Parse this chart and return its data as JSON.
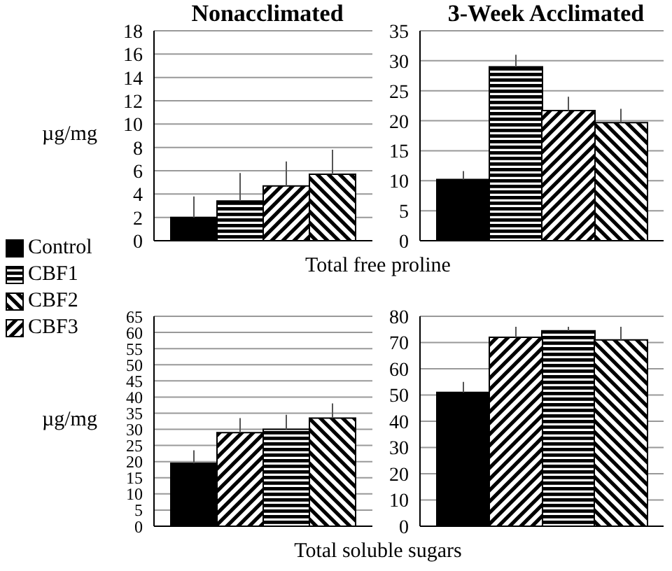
{
  "chart_data": [
    {
      "type": "bar",
      "title": "Nonacclimated",
      "xlabel": "Total free proline",
      "ylabel": "µg/mg",
      "categories": [
        null,
        null,
        null,
        null
      ],
      "stacked": true,
      "ylim": [
        0,
        18
      ],
      "yticks": [
        0,
        2,
        4,
        6,
        8,
        10,
        12,
        14,
        16,
        18
      ],
      "grid": "y",
      "legend": "left",
      "series": [
        {
          "name": "Control",
          "color": "#000000",
          "values": [
            2.0,
            null,
            null,
            null
          ],
          "errors": [
            [
              2.0,
              3.8
            ],
            null,
            null,
            null
          ]
        },
        {
          "name": "CBF1",
          "color": "#000000",
          "values": [
            null,
            3.4,
            null,
            null
          ],
          "errors": [
            null,
            [
              3.4,
              5.8
            ],
            null,
            null
          ]
        },
        {
          "name": "CBF2",
          "color": "#000000",
          "values": [
            null,
            null,
            null,
            5.7
          ],
          "errors": [
            null,
            null,
            null,
            [
              5.7,
              7.8
            ]
          ]
        },
        {
          "name": "CBF3",
          "color": "#000000",
          "values": [
            null,
            null,
            4.7,
            null
          ],
          "errors": [
            null,
            null,
            [
              4.7,
              6.8
            ],
            null
          ]
        }
      ]
    },
    {
      "type": "bar",
      "title": "3-Week Acclimated",
      "categories": [
        null,
        null,
        null,
        null
      ],
      "stacked": true,
      "ylim": [
        0,
        35
      ],
      "yticks": [
        0,
        5,
        10,
        15,
        20,
        25,
        30,
        35
      ],
      "grid": "y",
      "series": [
        {
          "color": "#000000",
          "values": [
            10.2,
            null,
            null,
            null
          ],
          "errors": [
            [
              10.2,
              11.6
            ],
            null,
            null,
            null
          ]
        },
        {
          "color": "#000000",
          "values": [
            null,
            29,
            null,
            null
          ],
          "errors": [
            null,
            [
              29,
              31
            ],
            null,
            null
          ]
        },
        {
          "color": "#000000",
          "values": [
            null,
            null,
            null,
            19.7
          ],
          "errors": [
            null,
            null,
            null,
            [
              19.7,
              22
            ]
          ]
        },
        {
          "color": "#000000",
          "values": [
            null,
            null,
            21.7,
            null
          ],
          "errors": [
            null,
            null,
            [
              21.7,
              24
            ],
            null
          ]
        }
      ]
    },
    {
      "type": "bar",
      "xlabel": "Total soluble sugars",
      "ylabel": "µg/mg",
      "categories": [
        null,
        null,
        null,
        null
      ],
      "stacked": true,
      "ylim": [
        0,
        65
      ],
      "yticks": [
        0,
        5,
        10,
        15,
        20,
        25,
        30,
        35,
        40,
        45,
        50,
        55,
        60,
        65
      ],
      "grid": "y",
      "series": [
        {
          "color": "#000000",
          "values": [
            19.5,
            null,
            null,
            null
          ],
          "errors": [
            [
              19.5,
              23.5
            ],
            null,
            null,
            null
          ]
        },
        {
          "color": "#000000",
          "values": [
            null,
            null,
            30,
            null
          ],
          "errors": [
            null,
            null,
            [
              30,
              34.5
            ],
            null
          ]
        },
        {
          "color": "#000000",
          "values": [
            null,
            null,
            null,
            33.5
          ],
          "errors": [
            null,
            null,
            null,
            [
              33.5,
              38
            ]
          ]
        },
        {
          "color": "#000000",
          "values": [
            null,
            29,
            null,
            null
          ],
          "errors": [
            null,
            [
              29,
              33.5
            ],
            null,
            null
          ]
        }
      ]
    },
    {
      "type": "bar",
      "categories": [
        null,
        null,
        null,
        null
      ],
      "stacked": true,
      "ylim": [
        0,
        80
      ],
      "yticks": [
        0,
        10,
        20,
        30,
        40,
        50,
        60,
        70,
        80
      ],
      "grid": "y",
      "series": [
        {
          "color": "#000000",
          "values": [
            51,
            null,
            null,
            null
          ],
          "errors": [
            [
              51,
              55
            ],
            null,
            null,
            null
          ]
        },
        {
          "color": "#000000",
          "values": [
            null,
            null,
            74.5,
            null
          ],
          "errors": [
            null,
            null,
            [
              74.5,
              76
            ],
            null
          ]
        },
        {
          "color": "#000000",
          "values": [
            null,
            null,
            null,
            71
          ],
          "errors": [
            null,
            null,
            null,
            [
              71,
              76
            ]
          ]
        },
        {
          "color": "#000000",
          "values": [
            null,
            72,
            null,
            null
          ],
          "errors": [
            null,
            [
              72,
              76
            ],
            null,
            null
          ]
        }
      ]
    }
  ]
}
